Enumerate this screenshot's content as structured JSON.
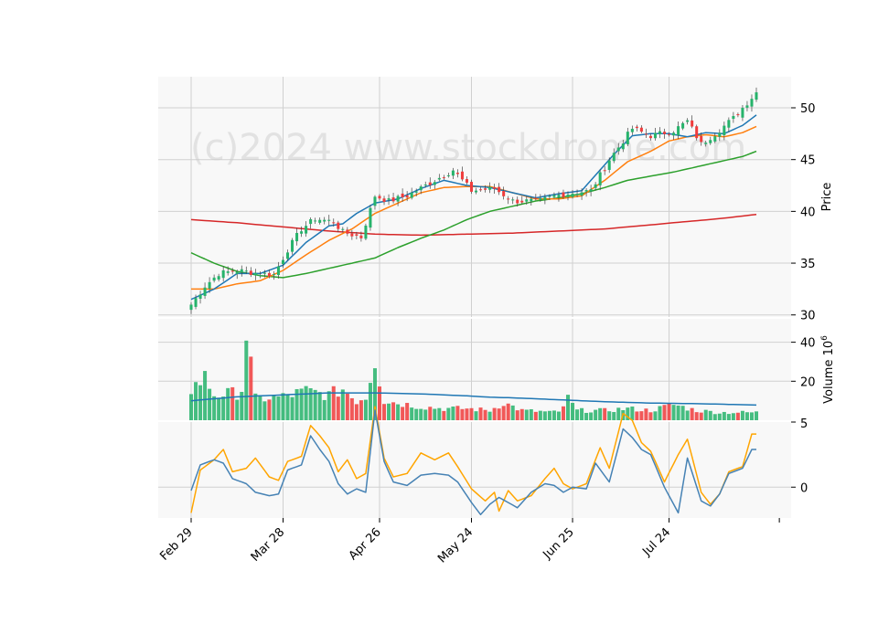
{
  "chart_data": {
    "type": "candlestick",
    "watermark": "(c)2024 www.stockdrome.com",
    "x_ticks": [
      "Feb 29",
      "Mar 28",
      "Apr 26",
      "May 24",
      "Jun 25",
      "Jul 24"
    ],
    "x_tick_index": [
      0,
      20,
      41,
      61,
      83,
      104
    ],
    "colors": {
      "up": "#26b36b",
      "down": "#f03c3c",
      "ma_fast": "#1f77b4",
      "ma_mid": "#ff7f0e",
      "ma_slow": "#2ca02c",
      "ma_long": "#d62728",
      "vol_ma": "#1f77b4",
      "osc_a": "#ffa500",
      "osc_b": "#4682b4",
      "panel_bg": "#f8f8f8",
      "grid": "#d0d0d0"
    },
    "panels": {
      "price": {
        "ylabel": "Price",
        "ylim": [
          29.8,
          53.0
        ],
        "yticks": [
          30,
          35,
          40,
          45,
          50
        ]
      },
      "volume": {
        "ylabel": "Volume",
        "ylabel_exp": "10",
        "ylabel_sup": "6",
        "ylim": [
          0,
          52
        ],
        "yticks": [
          20,
          40
        ],
        "tick_labels": [
          "20",
          "40"
        ]
      },
      "oscillator": {
        "ylim": [
          -1.8,
          3.8
        ],
        "yticks": [
          0
        ],
        "top_label": "5"
      }
    },
    "n_bars": 124,
    "price_anchors": [
      [
        0,
        31.0
      ],
      [
        3,
        32.8
      ],
      [
        6,
        34.0
      ],
      [
        10,
        34.3
      ],
      [
        15,
        34.0
      ],
      [
        18,
        33.9
      ],
      [
        21,
        36.3
      ],
      [
        24,
        38.3
      ],
      [
        27,
        39.3
      ],
      [
        31,
        39.0
      ],
      [
        33,
        38.0
      ],
      [
        37,
        37.5
      ],
      [
        40,
        41.5
      ],
      [
        43,
        41.0
      ],
      [
        47,
        41.5
      ],
      [
        51,
        42.5
      ],
      [
        57,
        44.0
      ],
      [
        61,
        42.0
      ],
      [
        66,
        42.2
      ],
      [
        70,
        41.0
      ],
      [
        76,
        41.0
      ],
      [
        79,
        41.5
      ],
      [
        83,
        41.8
      ],
      [
        87,
        42.0
      ],
      [
        91,
        45.0
      ],
      [
        96,
        48.0
      ],
      [
        100,
        47.3
      ],
      [
        105,
        47.8
      ],
      [
        108,
        48.7
      ],
      [
        111,
        46.5
      ],
      [
        114,
        47.5
      ],
      [
        118,
        49.0
      ],
      [
        120,
        50.0
      ],
      [
        123,
        51.5
      ]
    ],
    "volume_anchors": [
      [
        0,
        16
      ],
      [
        3,
        22
      ],
      [
        5,
        13
      ],
      [
        10,
        14
      ],
      [
        11,
        16
      ],
      [
        12,
        45
      ],
      [
        14,
        11
      ],
      [
        20,
        12
      ],
      [
        25,
        15
      ],
      [
        30,
        13
      ],
      [
        33,
        16
      ],
      [
        36,
        10
      ],
      [
        38,
        12
      ],
      [
        40,
        32
      ],
      [
        42,
        10
      ],
      [
        50,
        7
      ],
      [
        55,
        6
      ],
      [
        60,
        6
      ],
      [
        65,
        5
      ],
      [
        68,
        9
      ],
      [
        72,
        5
      ],
      [
        80,
        4
      ],
      [
        82,
        11
      ],
      [
        84,
        5
      ],
      [
        90,
        5
      ],
      [
        95,
        6
      ],
      [
        100,
        5
      ],
      [
        105,
        8
      ],
      [
        110,
        5
      ],
      [
        115,
        4
      ],
      [
        123,
        4
      ]
    ],
    "oscillator_a_anchors": [
      [
        0,
        -1.5
      ],
      [
        2,
        1.0
      ],
      [
        5,
        1.6
      ],
      [
        7,
        2.2
      ],
      [
        9,
        0.9
      ],
      [
        12,
        1.1
      ],
      [
        14,
        1.7
      ],
      [
        17,
        0.6
      ],
      [
        19,
        0.4
      ],
      [
        21,
        1.5
      ],
      [
        24,
        1.8
      ],
      [
        26,
        3.6
      ],
      [
        28,
        3.0
      ],
      [
        30,
        2.3
      ],
      [
        32,
        0.9
      ],
      [
        34,
        1.6
      ],
      [
        36,
        0.5
      ],
      [
        38,
        0.8
      ],
      [
        40,
        4.7
      ],
      [
        42,
        1.7
      ],
      [
        44,
        0.6
      ],
      [
        47,
        0.8
      ],
      [
        50,
        2.0
      ],
      [
        53,
        1.6
      ],
      [
        56,
        2.0
      ],
      [
        58,
        1.2
      ],
      [
        61,
        -0.1
      ],
      [
        64,
        -0.8
      ],
      [
        66,
        -0.3
      ],
      [
        67,
        -1.4
      ],
      [
        69,
        -0.2
      ],
      [
        71,
        -0.8
      ],
      [
        74,
        -0.5
      ],
      [
        77,
        0.5
      ],
      [
        79,
        1.1
      ],
      [
        81,
        0.2
      ],
      [
        83,
        -0.1
      ],
      [
        86,
        0.2
      ],
      [
        89,
        2.3
      ],
      [
        91,
        1.1
      ],
      [
        94,
        4.3
      ],
      [
        96,
        3.9
      ],
      [
        98,
        2.6
      ],
      [
        100,
        2.1
      ],
      [
        103,
        0.3
      ],
      [
        106,
        1.9
      ],
      [
        108,
        2.8
      ],
      [
        111,
        -0.3
      ],
      [
        113,
        -1.0
      ],
      [
        115,
        -0.4
      ],
      [
        117,
        0.9
      ],
      [
        120,
        1.2
      ],
      [
        122,
        3.1
      ],
      [
        123,
        3.1
      ]
    ],
    "oscillator_b_anchors": [
      [
        0,
        -0.2
      ],
      [
        2,
        1.3
      ],
      [
        5,
        1.6
      ],
      [
        7,
        1.4
      ],
      [
        9,
        0.5
      ],
      [
        12,
        0.2
      ],
      [
        14,
        -0.3
      ],
      [
        17,
        -0.5
      ],
      [
        19,
        -0.4
      ],
      [
        21,
        1.0
      ],
      [
        24,
        1.3
      ],
      [
        26,
        3.0
      ],
      [
        28,
        2.2
      ],
      [
        30,
        1.5
      ],
      [
        32,
        0.2
      ],
      [
        34,
        -0.4
      ],
      [
        36,
        -0.1
      ],
      [
        38,
        -0.3
      ],
      [
        40,
        4.5
      ],
      [
        42,
        1.5
      ],
      [
        44,
        0.3
      ],
      [
        47,
        0.1
      ],
      [
        50,
        0.7
      ],
      [
        53,
        0.8
      ],
      [
        56,
        0.7
      ],
      [
        58,
        0.3
      ],
      [
        61,
        -0.9
      ],
      [
        63,
        -1.6
      ],
      [
        65,
        -1.0
      ],
      [
        67,
        -0.6
      ],
      [
        69,
        -0.9
      ],
      [
        71,
        -1.2
      ],
      [
        74,
        -0.3
      ],
      [
        77,
        0.2
      ],
      [
        79,
        0.1
      ],
      [
        81,
        -0.3
      ],
      [
        83,
        0.0
      ],
      [
        86,
        -0.1
      ],
      [
        88,
        1.4
      ],
      [
        91,
        0.3
      ],
      [
        94,
        3.4
      ],
      [
        96,
        2.9
      ],
      [
        98,
        2.2
      ],
      [
        100,
        1.9
      ],
      [
        103,
        0.0
      ],
      [
        106,
        -1.5
      ],
      [
        108,
        1.7
      ],
      [
        111,
        -0.8
      ],
      [
        113,
        -1.1
      ],
      [
        115,
        -0.4
      ],
      [
        117,
        0.8
      ],
      [
        120,
        1.1
      ],
      [
        122,
        2.2
      ],
      [
        123,
        2.2
      ]
    ],
    "ma_fast_anchors": [
      [
        0,
        31.5
      ],
      [
        5,
        32.5
      ],
      [
        10,
        34.0
      ],
      [
        15,
        34.0
      ],
      [
        20,
        34.8
      ],
      [
        25,
        37.0
      ],
      [
        30,
        38.6
      ],
      [
        33,
        38.8
      ],
      [
        36,
        39.8
      ],
      [
        40,
        40.8
      ],
      [
        45,
        41.2
      ],
      [
        50,
        42.2
      ],
      [
        55,
        43.0
      ],
      [
        60,
        42.5
      ],
      [
        65,
        42.3
      ],
      [
        70,
        41.8
      ],
      [
        75,
        41.3
      ],
      [
        80,
        41.7
      ],
      [
        85,
        42.0
      ],
      [
        88,
        43.5
      ],
      [
        92,
        45.5
      ],
      [
        96,
        47.3
      ],
      [
        100,
        47.5
      ],
      [
        104,
        47.5
      ],
      [
        108,
        47.2
      ],
      [
        112,
        47.6
      ],
      [
        116,
        47.5
      ],
      [
        120,
        48.3
      ],
      [
        123,
        49.3
      ]
    ],
    "ma_mid_anchors": [
      [
        0,
        32.5
      ],
      [
        5,
        32.5
      ],
      [
        10,
        33.0
      ],
      [
        15,
        33.3
      ],
      [
        20,
        34.3
      ],
      [
        25,
        35.8
      ],
      [
        30,
        37.2
      ],
      [
        35,
        38.3
      ],
      [
        40,
        39.8
      ],
      [
        45,
        40.8
      ],
      [
        50,
        41.8
      ],
      [
        55,
        42.3
      ],
      [
        60,
        42.4
      ],
      [
        65,
        42.4
      ],
      [
        70,
        41.8
      ],
      [
        75,
        41.2
      ],
      [
        80,
        41.2
      ],
      [
        85,
        41.5
      ],
      [
        90,
        43.0
      ],
      [
        95,
        44.8
      ],
      [
        100,
        45.8
      ],
      [
        104,
        46.8
      ],
      [
        108,
        47.2
      ],
      [
        112,
        47.4
      ],
      [
        116,
        47.2
      ],
      [
        120,
        47.6
      ],
      [
        123,
        48.2
      ]
    ],
    "ma_slow_anchors": [
      [
        0,
        36.0
      ],
      [
        5,
        35.0
      ],
      [
        10,
        34.2
      ],
      [
        15,
        33.8
      ],
      [
        20,
        33.6
      ],
      [
        25,
        34.0
      ],
      [
        30,
        34.5
      ],
      [
        35,
        35.0
      ],
      [
        40,
        35.5
      ],
      [
        45,
        36.5
      ],
      [
        50,
        37.4
      ],
      [
        55,
        38.2
      ],
      [
        60,
        39.2
      ],
      [
        65,
        40.0
      ],
      [
        70,
        40.5
      ],
      [
        75,
        41.0
      ],
      [
        80,
        41.3
      ],
      [
        85,
        41.7
      ],
      [
        90,
        42.3
      ],
      [
        95,
        43.0
      ],
      [
        100,
        43.4
      ],
      [
        105,
        43.8
      ],
      [
        110,
        44.3
      ],
      [
        115,
        44.8
      ],
      [
        120,
        45.3
      ],
      [
        123,
        45.8
      ]
    ],
    "ma_long_anchors": [
      [
        0,
        39.2
      ],
      [
        10,
        38.9
      ],
      [
        20,
        38.5
      ],
      [
        30,
        38.1
      ],
      [
        40,
        37.8
      ],
      [
        50,
        37.7
      ],
      [
        60,
        37.8
      ],
      [
        70,
        37.9
      ],
      [
        80,
        38.1
      ],
      [
        90,
        38.3
      ],
      [
        95,
        38.5
      ],
      [
        100,
        38.7
      ],
      [
        110,
        39.1
      ],
      [
        115,
        39.3
      ],
      [
        123,
        39.7
      ]
    ],
    "vol_ma_anchors": [
      [
        0,
        10
      ],
      [
        10,
        12
      ],
      [
        20,
        13
      ],
      [
        30,
        14
      ],
      [
        40,
        14
      ],
      [
        50,
        13.5
      ],
      [
        60,
        12.5
      ],
      [
        65,
        11.8
      ],
      [
        70,
        11.5
      ],
      [
        80,
        10.5
      ],
      [
        90,
        9.5
      ],
      [
        100,
        8.8
      ],
      [
        110,
        8.5
      ],
      [
        123,
        7.8
      ]
    ]
  }
}
